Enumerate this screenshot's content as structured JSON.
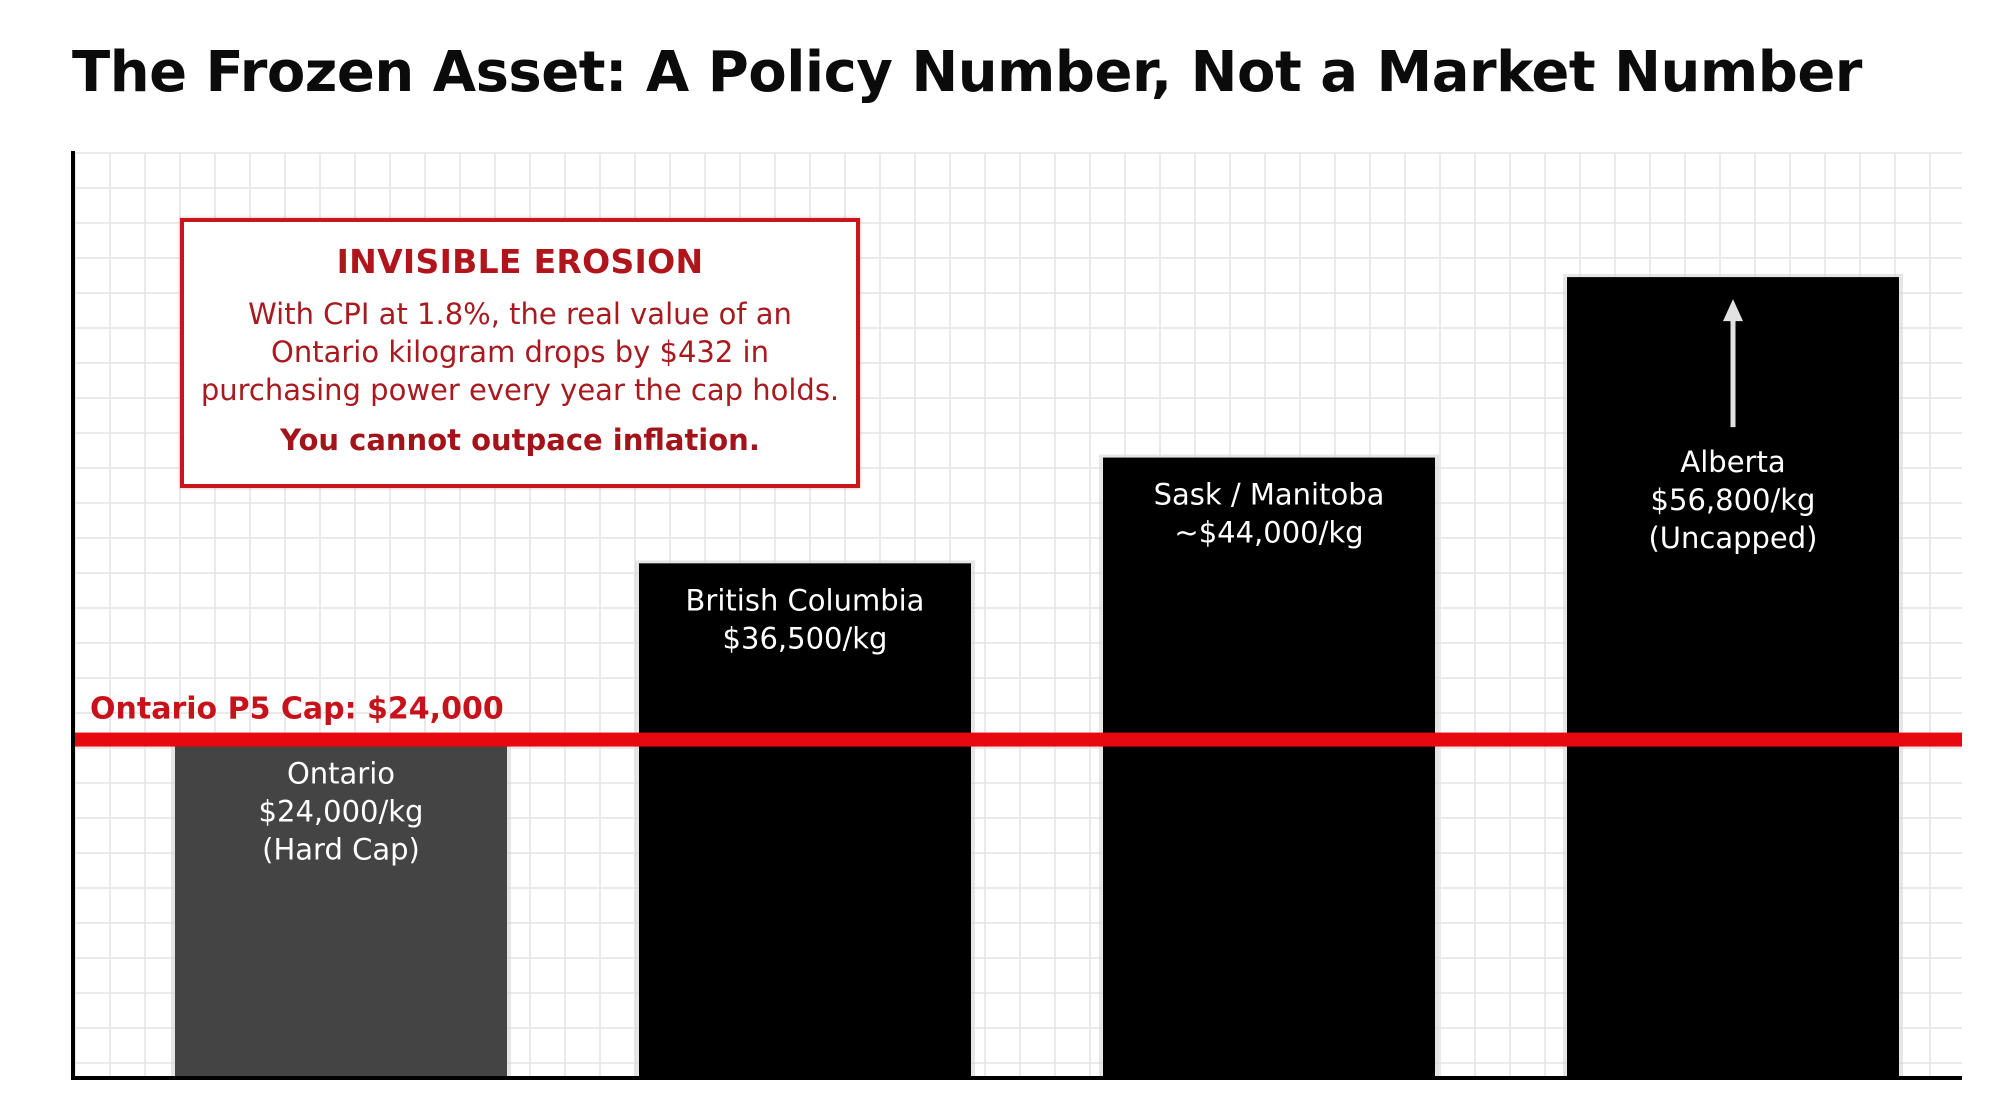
{
  "title": "The Frozen Asset: A Policy Number, Not a Market Number",
  "callout": {
    "title": "INVISIBLE EROSION",
    "body": "With CPI at 1.8%, the real value of an Ontario kilogram drops by $432 in purchasing power every year the cap holds.",
    "emphasis": "You cannot outpace inflation.",
    "border_color": "#c8161d",
    "text_color": "#a3141a"
  },
  "colors": {
    "ontario_bar": "#444444",
    "other_bars": "#000000",
    "cap_line": "#e8080f",
    "cap_label": "#c8121b",
    "grid": "#e4e4e4",
    "axis": "#000000"
  },
  "chart_data": {
    "type": "bar",
    "title": "The Frozen Asset: A Policy Number, Not a Market Number",
    "xlabel": "",
    "ylabel": "",
    "units": "CAD $/kg",
    "grid": true,
    "ylim": [
      0,
      65600
    ],
    "categories": [
      "Ontario",
      "British Columbia",
      "Sask / Manitoba",
      "Alberta"
    ],
    "values": [
      24000,
      36500,
      44000,
      56800
    ],
    "labels": [
      [
        "Ontario",
        "$24,000/kg",
        "(Hard Cap)"
      ],
      [
        "British Columbia",
        "$36,500/kg"
      ],
      [
        "Sask / Manitoba",
        "~$44,000/kg"
      ],
      [
        "Alberta",
        "$56,800/kg",
        "(Uncapped)"
      ]
    ],
    "bar_styles": [
      "ontario",
      "other",
      "other",
      "other"
    ],
    "overflow_arrow_on": "Alberta",
    "reference_line": {
      "value": 24000,
      "label": "Ontario P5 Cap: $24,000"
    }
  }
}
